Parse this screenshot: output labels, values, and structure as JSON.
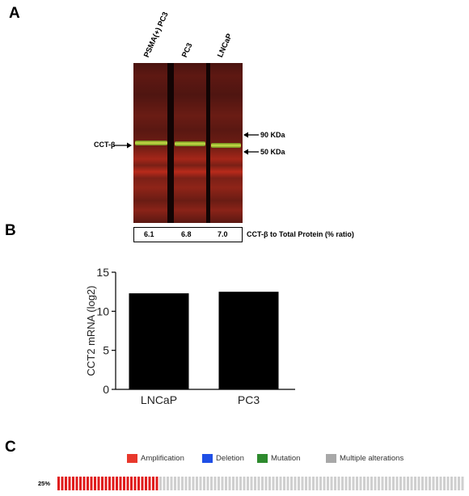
{
  "panels": {
    "a": "A",
    "b": "B",
    "c": "C"
  },
  "western_blot": {
    "lanes": [
      "PSMA(+) PC3",
      "PC3",
      "LNCaP"
    ],
    "band_label": "CCT-β",
    "markers": [
      "90 KDa",
      "50 KDa"
    ],
    "ratios": [
      "6.1",
      "6.8",
      "7.0"
    ],
    "ratio_label": "CCT-β to Total Protein (% ratio)"
  },
  "chart_data": {
    "type": "bar",
    "categories": [
      "LNCaP",
      "PC3"
    ],
    "values": [
      12.3,
      12.5
    ],
    "ylabel": "CCT2 mRNA (log2)",
    "xlabel": "",
    "ylim": [
      0,
      15
    ],
    "yticks": [
      0,
      5,
      10,
      15
    ],
    "bar_color": "#000000"
  },
  "oncoprint": {
    "legend": [
      {
        "label": "Amplification",
        "color": "#e8382c"
      },
      {
        "label": "Deletion",
        "color": "#1f4fe6"
      },
      {
        "label": "Mutation",
        "color": "#2e8a2e"
      },
      {
        "label": "Multiple alterations",
        "color": "#a8a8a8"
      }
    ],
    "percent_label": "25%",
    "altered_fraction": 0.25,
    "altered_color": "#e01b1b",
    "unaltered_color": "#cfcfcf"
  }
}
